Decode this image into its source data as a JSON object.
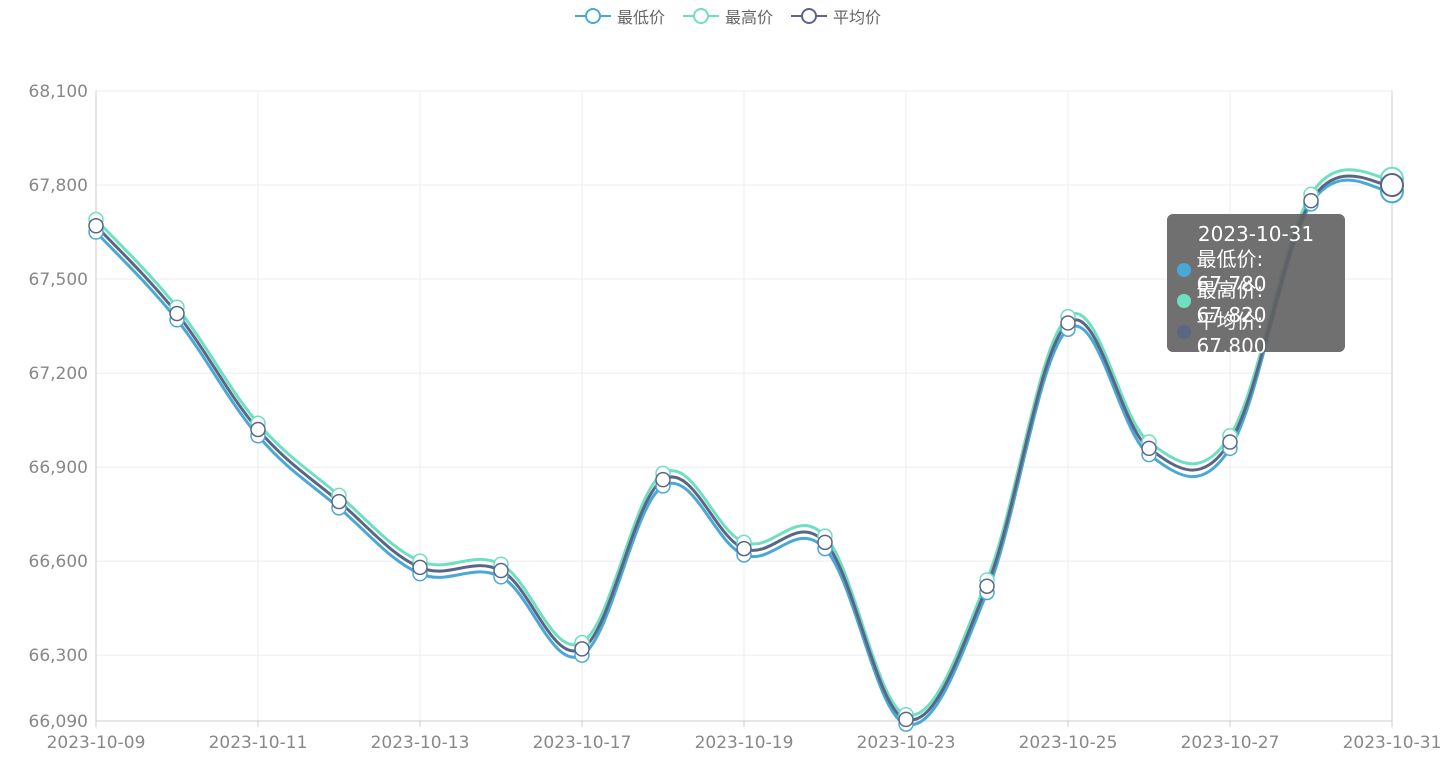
{
  "chart_data": {
    "type": "line",
    "x": [
      "2023-10-09",
      "2023-10-10",
      "2023-10-11",
      "2023-10-12",
      "2023-10-13",
      "2023-10-14",
      "2023-10-17",
      "2023-10-18",
      "2023-10-19",
      "2023-10-20",
      "2023-10-23",
      "2023-10-24",
      "2023-10-25",
      "2023-10-26",
      "2023-10-27",
      "2023-10-28",
      "2023-10-31"
    ],
    "x_tick_labels": [
      "2023-10-09",
      "2023-10-11",
      "2023-10-13",
      "2023-10-17",
      "2023-10-19",
      "2023-10-23",
      "2023-10-25",
      "2023-10-27",
      "2023-10-31"
    ],
    "y_ticks": [
      66090,
      66300,
      66600,
      66900,
      67200,
      67500,
      67800,
      68100
    ],
    "y_tick_labels": [
      "66,090",
      "66,300",
      "66,600",
      "66,900",
      "67,200",
      "67,500",
      "67,800",
      "68,100"
    ],
    "ylim": [
      66090,
      68100
    ],
    "series": [
      {
        "name": "最低价",
        "color": "#4aa8d8",
        "values": [
          67650,
          67370,
          67000,
          66770,
          66560,
          66550,
          66300,
          66840,
          66620,
          66640,
          66080,
          66500,
          67340,
          66940,
          66960,
          67740,
          67780
        ]
      },
      {
        "name": "最高价",
        "color": "#6edfc0",
        "values": [
          67690,
          67410,
          67040,
          66810,
          66600,
          66590,
          66340,
          66880,
          66660,
          66680,
          66110,
          66540,
          67380,
          66980,
          67000,
          67770,
          67820
        ]
      },
      {
        "name": "平均价",
        "color": "#5a6684",
        "values": [
          67670,
          67390,
          67020,
          66790,
          66580,
          66570,
          66320,
          66860,
          66640,
          66660,
          66095,
          66520,
          67360,
          66960,
          66980,
          67750,
          67800
        ]
      }
    ],
    "grid": true,
    "legend_position": "top-center",
    "tooltip": {
      "title": "2023-10-31",
      "rows": [
        {
          "label": "最低价: 67,780",
          "color": "#4aa8d8"
        },
        {
          "label": "最高价: 67,820",
          "color": "#6edfc0"
        },
        {
          "label": "平均价: 67,800",
          "color": "#5a6684"
        }
      ]
    }
  }
}
